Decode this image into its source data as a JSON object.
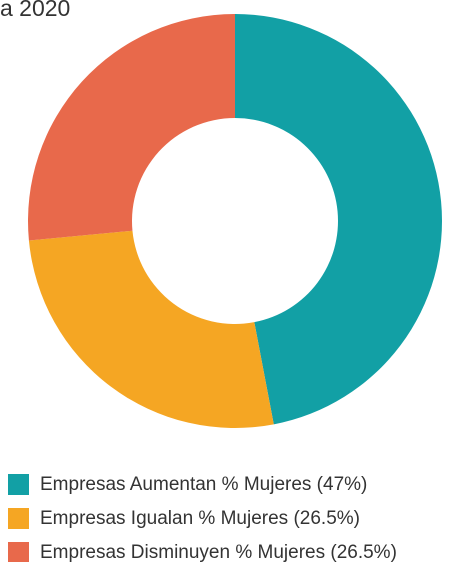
{
  "chart_data": {
    "type": "pie",
    "title": "a 2020",
    "categories": [
      "Empresas Aumentan % Mujeres (47%)",
      "Empresas Igualan % Mujeres (26.5%)",
      "Empresas Disminuyen % Mujeres (26.5%)"
    ],
    "values": [
      47,
      26.5,
      26.5
    ],
    "colors": [
      "#12a0a5",
      "#f5a623",
      "#e8694b"
    ],
    "donut": true
  }
}
